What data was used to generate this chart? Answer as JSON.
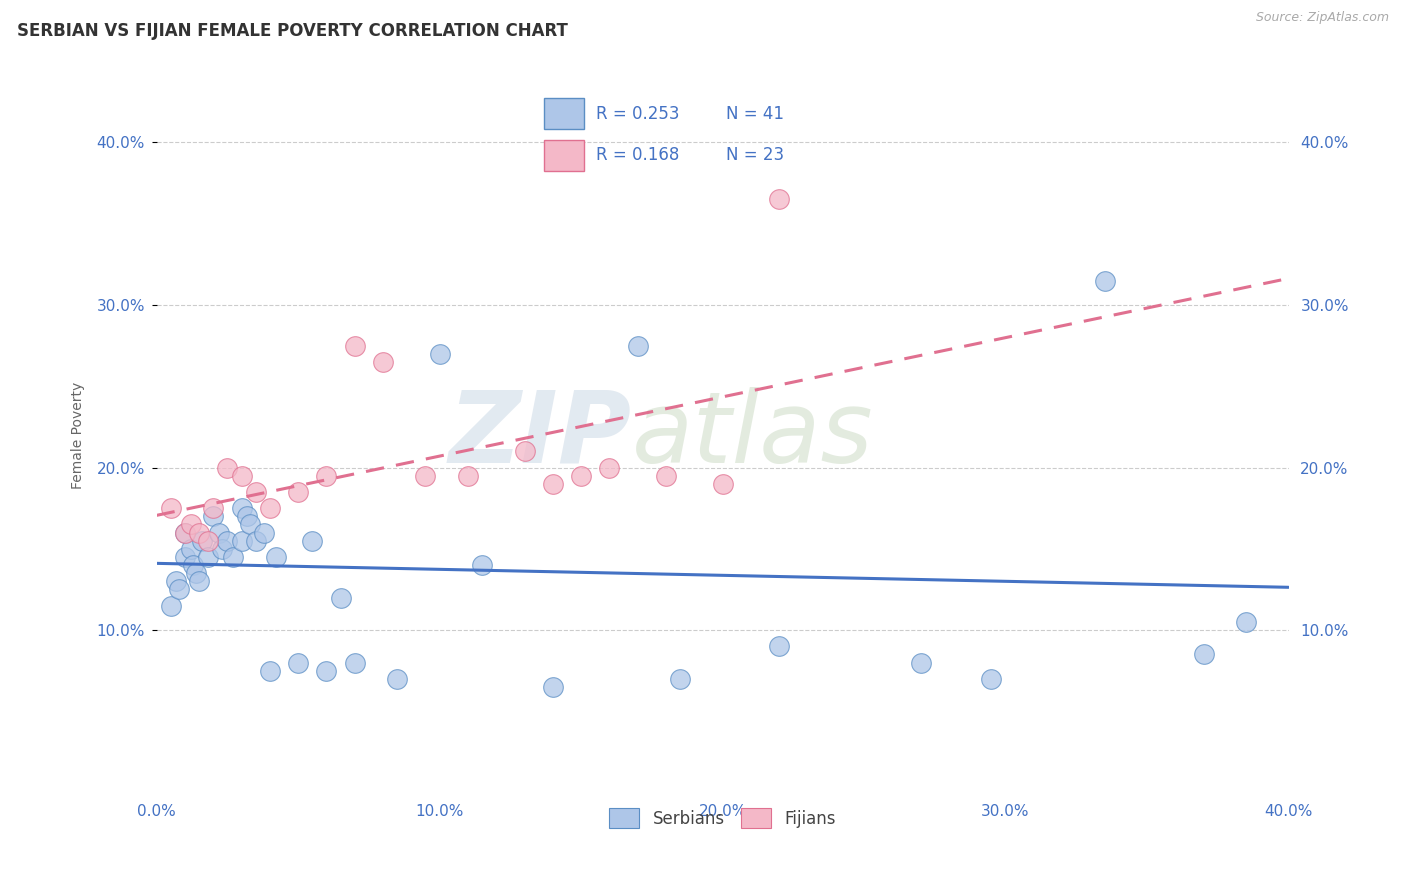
{
  "title": "SERBIAN VS FIJIAN FEMALE POVERTY CORRELATION CHART",
  "source": "Source: ZipAtlas.com",
  "ylabel_label": "Female Poverty",
  "xlim": [
    0.0,
    0.4
  ],
  "ylim": [
    0.0,
    0.44
  ],
  "xtick_vals": [
    0.0,
    0.1,
    0.2,
    0.3,
    0.4
  ],
  "xtick_labels": [
    "0.0%",
    "10.0%",
    "20.0%",
    "30.0%",
    "40.0%"
  ],
  "ytick_vals": [
    0.1,
    0.2,
    0.3,
    0.4
  ],
  "ytick_labels": [
    "10.0%",
    "20.0%",
    "30.0%",
    "40.0%"
  ],
  "serbian_color": "#aec6e8",
  "fijian_color": "#f4b8c8",
  "serbian_edge_color": "#5b8ec4",
  "fijian_edge_color": "#e07090",
  "serbian_line_color": "#4472c4",
  "fijian_line_color": "#e07090",
  "serbian_R": 0.253,
  "serbian_N": 41,
  "fijian_R": 0.168,
  "fijian_N": 23,
  "watermark_zip": "ZIP",
  "watermark_atlas": "atlas",
  "title_fontsize": 12,
  "axis_label_fontsize": 10,
  "tick_fontsize": 11,
  "legend_text_color": "#4472c4",
  "serbian_x": [
    0.005,
    0.007,
    0.008,
    0.01,
    0.01,
    0.012,
    0.013,
    0.014,
    0.015,
    0.016,
    0.018,
    0.02,
    0.022,
    0.023,
    0.025,
    0.027,
    0.03,
    0.03,
    0.032,
    0.033,
    0.035,
    0.038,
    0.04,
    0.042,
    0.05,
    0.055,
    0.06,
    0.065,
    0.07,
    0.085,
    0.1,
    0.115,
    0.14,
    0.17,
    0.185,
    0.22,
    0.27,
    0.295,
    0.335,
    0.37,
    0.385
  ],
  "serbian_y": [
    0.115,
    0.13,
    0.125,
    0.16,
    0.145,
    0.15,
    0.14,
    0.135,
    0.13,
    0.155,
    0.145,
    0.17,
    0.16,
    0.15,
    0.155,
    0.145,
    0.175,
    0.155,
    0.17,
    0.165,
    0.155,
    0.16,
    0.075,
    0.145,
    0.08,
    0.155,
    0.075,
    0.12,
    0.08,
    0.07,
    0.27,
    0.14,
    0.065,
    0.275,
    0.07,
    0.09,
    0.08,
    0.07,
    0.315,
    0.085,
    0.105
  ],
  "fijian_x": [
    0.005,
    0.01,
    0.012,
    0.015,
    0.018,
    0.02,
    0.025,
    0.03,
    0.035,
    0.04,
    0.05,
    0.06,
    0.07,
    0.08,
    0.095,
    0.11,
    0.13,
    0.14,
    0.15,
    0.16,
    0.18,
    0.2,
    0.22
  ],
  "fijian_y": [
    0.175,
    0.16,
    0.165,
    0.16,
    0.155,
    0.175,
    0.2,
    0.195,
    0.185,
    0.175,
    0.185,
    0.195,
    0.275,
    0.265,
    0.195,
    0.195,
    0.21,
    0.19,
    0.195,
    0.2,
    0.195,
    0.19,
    0.365
  ]
}
